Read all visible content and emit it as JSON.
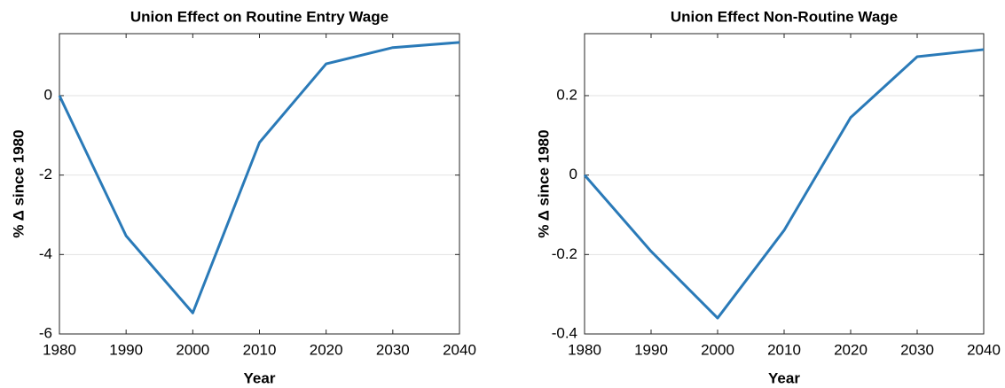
{
  "chart_data": [
    {
      "type": "line",
      "title": "Union Effect on Routine Entry Wage",
      "x_label": "Year",
      "y_label": "% Δ since 1980",
      "x": [
        1980,
        1990,
        2000,
        2010,
        2020,
        2030,
        2040
      ],
      "series": [
        {
          "color": "#2a7ab8",
          "values": [
            0,
            -3.53,
            -5.47,
            -1.18,
            0.8,
            1.21,
            1.34
          ]
        }
      ],
      "xlim": [
        1980,
        2040
      ],
      "xticks": [
        1980,
        1990,
        2000,
        2010,
        2020,
        2030,
        2040
      ],
      "ylim": [
        -6,
        1.56
      ],
      "yticks": [
        -6,
        -4,
        -2,
        0
      ],
      "grid": true
    },
    {
      "type": "line",
      "title": "Union Effect Non-Routine Wage",
      "x_label": "Year",
      "y_label": "% Δ since 1980",
      "x": [
        1980,
        1990,
        2000,
        2010,
        2020,
        2030,
        2040
      ],
      "series": [
        {
          "color": "#2a7ab8",
          "values": [
            0,
            -0.192,
            -0.36,
            -0.139,
            0.145,
            0.298,
            0.316
          ]
        }
      ],
      "xlim": [
        1980,
        2040
      ],
      "xticks": [
        1980,
        1990,
        2000,
        2010,
        2020,
        2030,
        2040
      ],
      "ylim": [
        -0.4,
        0.356
      ],
      "yticks": [
        -0.4,
        -0.2,
        0,
        0.2
      ],
      "grid": true
    }
  ]
}
